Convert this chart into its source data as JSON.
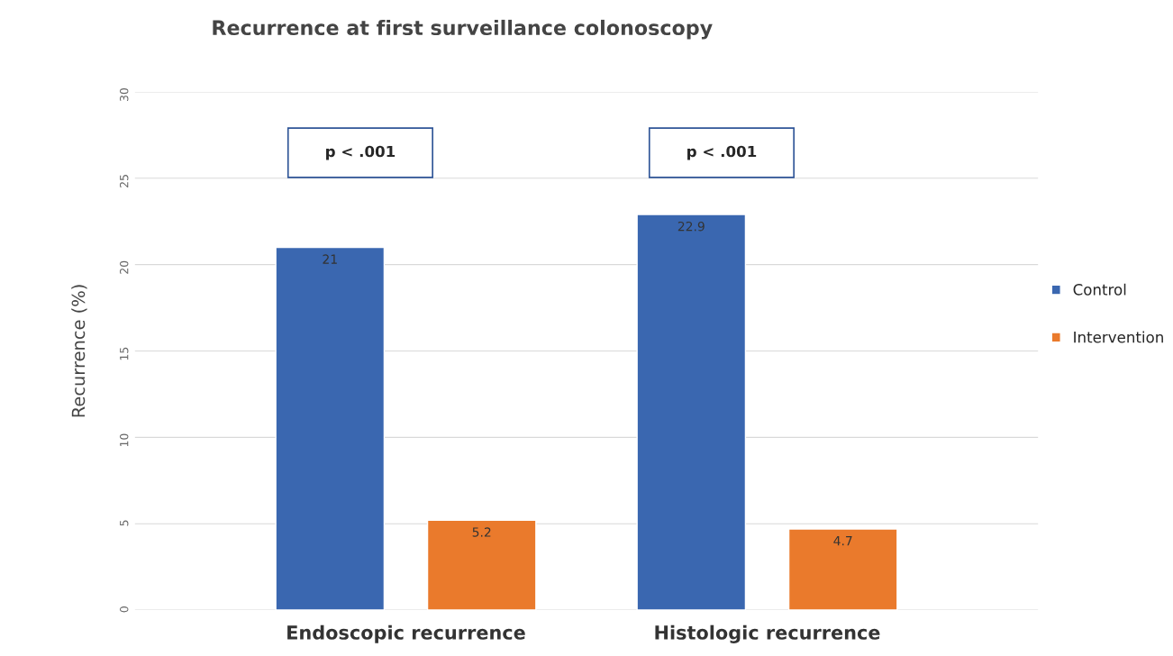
{
  "chart_data": {
    "type": "bar",
    "title": "Recurrence at first surveillance colonoscopy",
    "ylabel": "Recurrence (%)",
    "categories": [
      "Endoscopic recurrence",
      "Histologic recurrence"
    ],
    "series": [
      {
        "name": "Control",
        "color": "#3a67b0",
        "values": [
          21,
          22.9
        ]
      },
      {
        "name": "Intervention",
        "color": "#ea7a2c",
        "values": [
          5.2,
          4.7
        ]
      }
    ],
    "ylim": [
      0,
      30
    ],
    "yticks": [
      0,
      5,
      10,
      15,
      20,
      25,
      30
    ],
    "grid": "y",
    "legend": "right",
    "data_labels": true,
    "annotations": [
      "p < .001",
      "p < .001"
    ]
  }
}
